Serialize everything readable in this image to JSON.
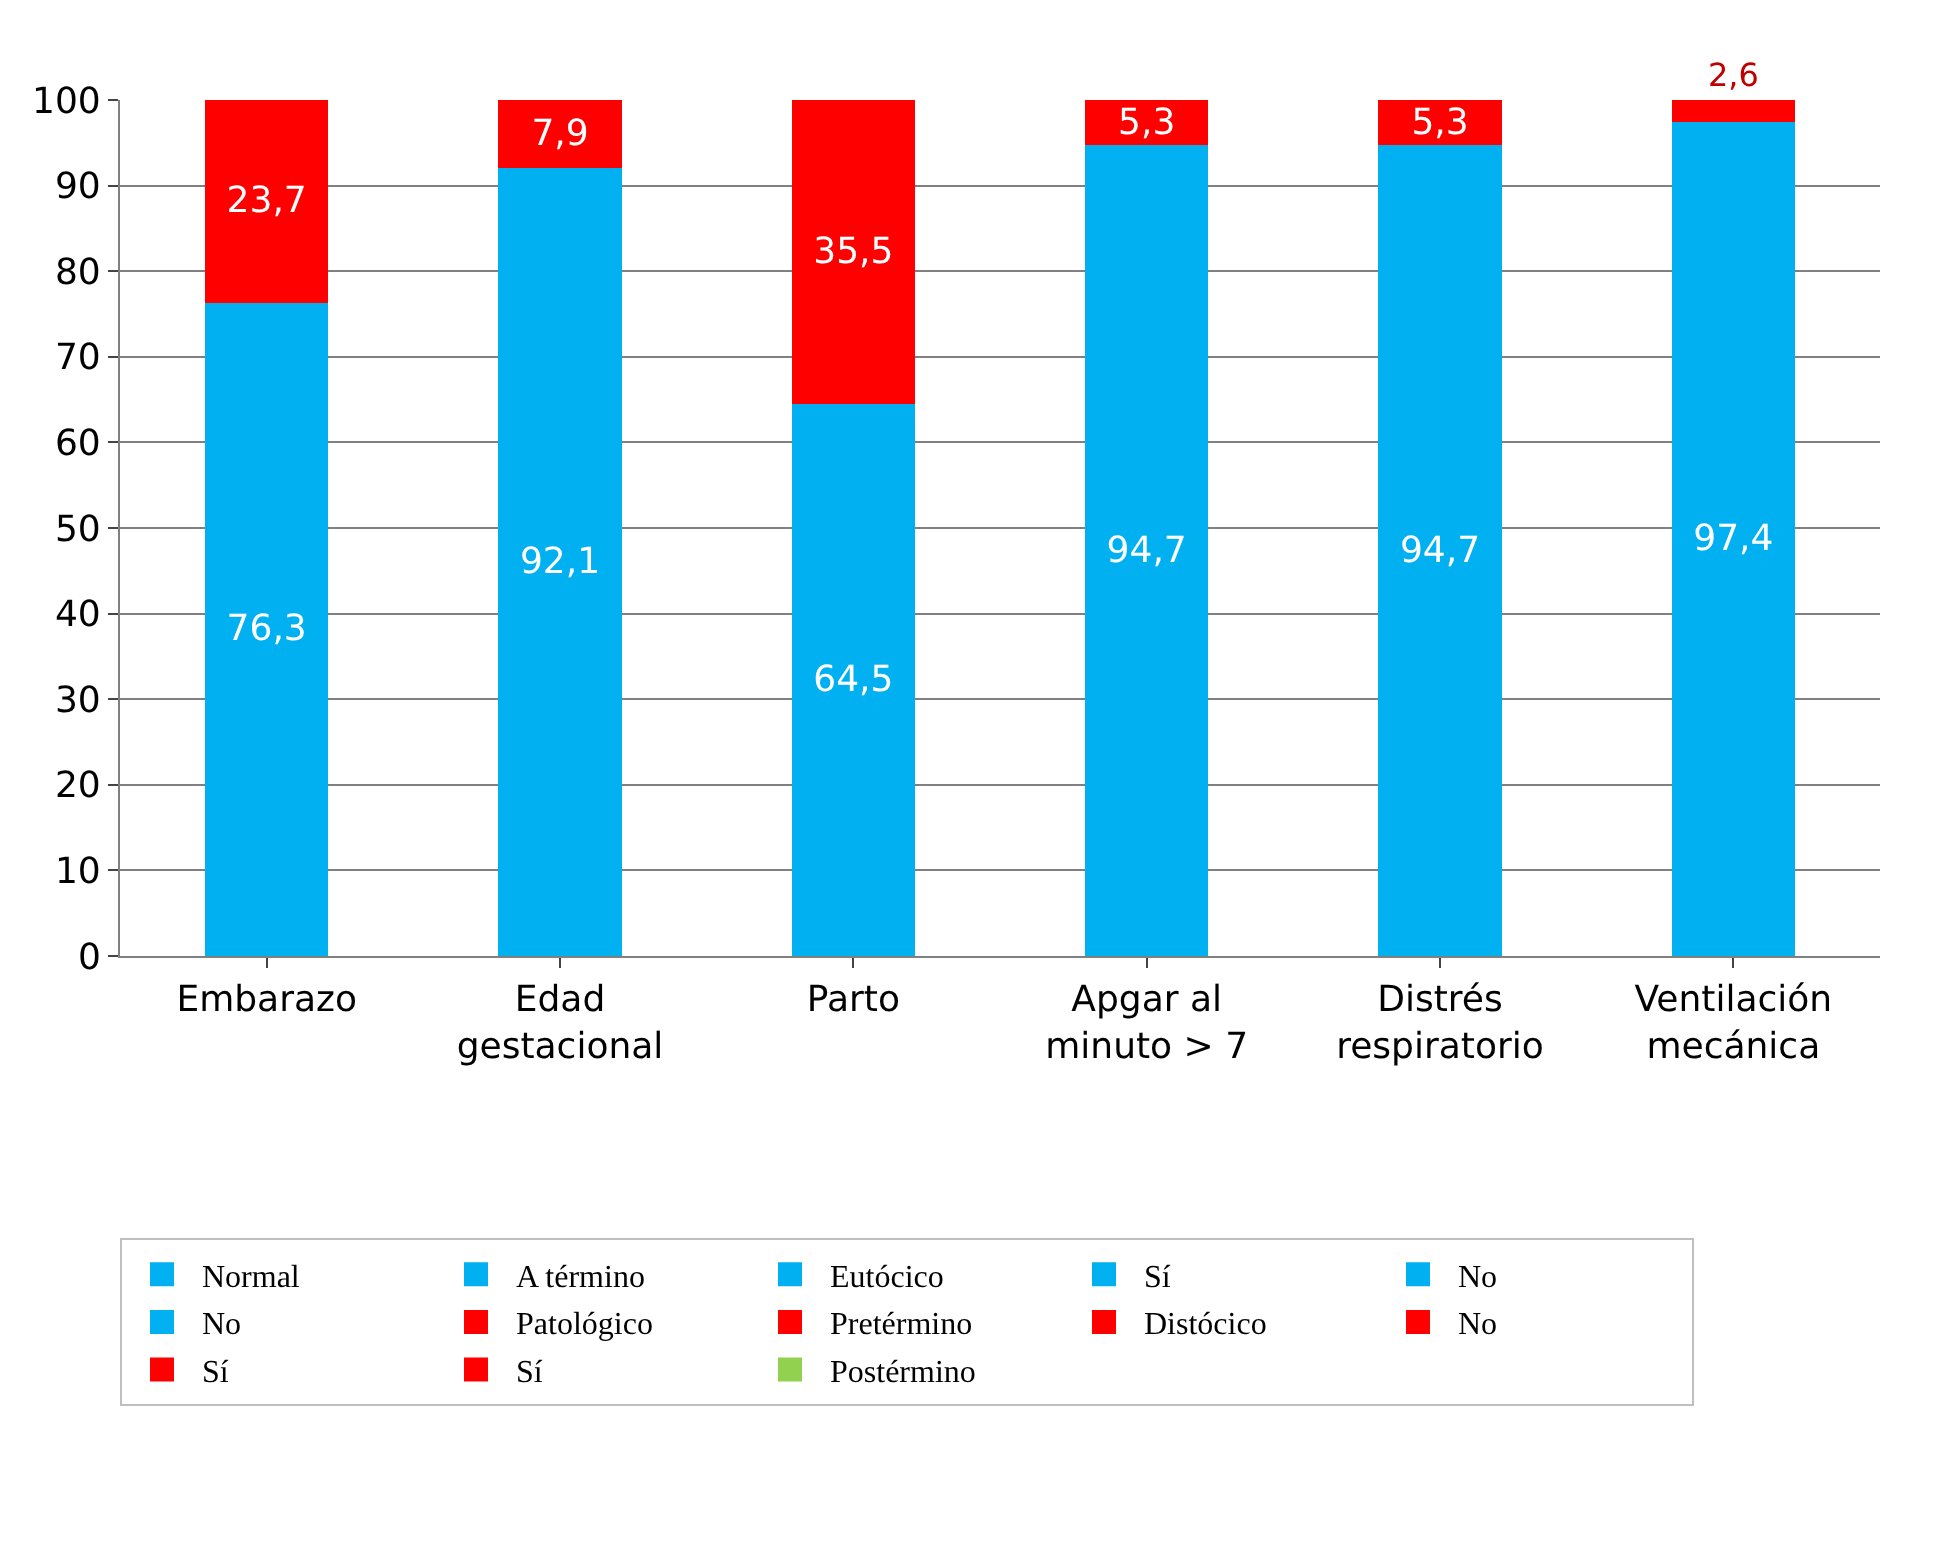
{
  "chart_data": {
    "type": "bar",
    "stacked": true,
    "categories": [
      "Embarazo",
      "Edad\ngestacional",
      "Parto",
      "Apgar al\nminuto > 7",
      "Distrés\nrespiratorio",
      "Ventilación\nmecánica"
    ],
    "series": [
      {
        "name": "Normal",
        "color": "#00b0f0",
        "values": [
          76.3,
          null,
          null,
          null,
          null,
          null
        ],
        "value_labels": [
          "76,3",
          null,
          null,
          null,
          null,
          null
        ]
      },
      {
        "name": "A término",
        "color": "#00b0f0",
        "values": [
          null,
          92.1,
          null,
          null,
          null,
          null
        ],
        "value_labels": [
          null,
          "92,1",
          null,
          null,
          null,
          null
        ]
      },
      {
        "name": "Eutócico",
        "color": "#00b0f0",
        "values": [
          null,
          null,
          64.5,
          null,
          null,
          null
        ],
        "value_labels": [
          null,
          null,
          "64,5",
          null,
          null,
          null
        ]
      },
      {
        "name": "Sí",
        "color": "#00b0f0",
        "values": [
          null,
          null,
          null,
          94.7,
          null,
          null
        ],
        "value_labels": [
          null,
          null,
          null,
          "94,7",
          null,
          null
        ]
      },
      {
        "name": "No",
        "color": "#00b0f0",
        "values": [
          null,
          null,
          null,
          null,
          94.7,
          null
        ],
        "value_labels": [
          null,
          null,
          null,
          null,
          "94,7",
          null
        ]
      },
      {
        "name": "No",
        "color": "#00b0f0",
        "values": [
          null,
          null,
          null,
          null,
          null,
          97.4
        ],
        "value_labels": [
          null,
          null,
          null,
          null,
          null,
          "97,4"
        ]
      },
      {
        "name": "Patológico",
        "color": "#ff0000",
        "values": [
          23.7,
          null,
          null,
          null,
          null,
          null
        ],
        "value_labels": [
          "23,7",
          null,
          null,
          null,
          null,
          null
        ]
      },
      {
        "name": "Pretérmino",
        "color": "#ff0000",
        "values": [
          null,
          7.9,
          null,
          null,
          null,
          null
        ],
        "value_labels": [
          null,
          "7,9",
          null,
          null,
          null,
          null
        ]
      },
      {
        "name": "Distócico",
        "color": "#ff0000",
        "values": [
          null,
          null,
          35.5,
          null,
          null,
          null
        ],
        "value_labels": [
          null,
          null,
          "35,5",
          null,
          null,
          null
        ]
      },
      {
        "name": "No",
        "color": "#ff0000",
        "values": [
          null,
          null,
          null,
          5.3,
          null,
          null
        ],
        "value_labels": [
          null,
          null,
          null,
          "5,3",
          null,
          null
        ]
      },
      {
        "name": "Sí",
        "color": "#ff0000",
        "values": [
          null,
          null,
          null,
          null,
          5.3,
          null
        ],
        "value_labels": [
          null,
          null,
          null,
          null,
          "5,3",
          null
        ]
      },
      {
        "name": "Sí",
        "color": "#ff0000",
        "values": [
          null,
          null,
          null,
          null,
          null,
          2.6
        ],
        "value_labels": [
          null,
          null,
          null,
          null,
          null,
          "2,6"
        ]
      },
      {
        "name": "Postérmino",
        "color": "#92d050",
        "values": [
          null,
          null,
          null,
          null,
          null,
          null
        ]
      }
    ],
    "ylim": [
      0,
      100
    ],
    "yticks": [
      0,
      10,
      20,
      30,
      40,
      50,
      60,
      70,
      80,
      90,
      100
    ],
    "grid": "y",
    "legend": "bottom"
  }
}
